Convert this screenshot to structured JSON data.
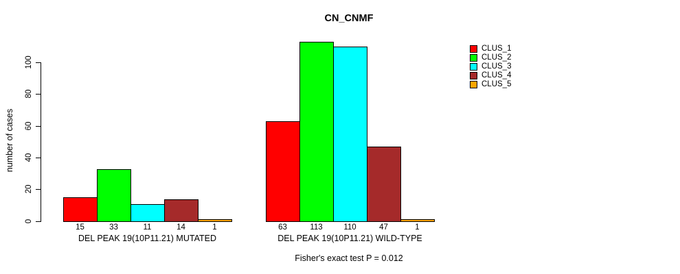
{
  "chart_data": {
    "type": "bar",
    "title": "CN_CNMF",
    "ylabel": "number of cases",
    "xlabel": "",
    "ylim": [
      0,
      113
    ],
    "yticks": [
      0,
      20,
      40,
      60,
      80,
      100
    ],
    "grid": false,
    "bar_border_color": "#000000",
    "legend_position": "top-right-inside",
    "series": [
      {
        "name": "CLUS_1",
        "color": "#FF0000"
      },
      {
        "name": "CLUS_2",
        "color": "#00FF00"
      },
      {
        "name": "CLUS_3",
        "color": "#00FFFF"
      },
      {
        "name": "CLUS_4",
        "color": "#A52A2A"
      },
      {
        "name": "CLUS_5",
        "color": "#FFA500"
      }
    ],
    "groups": [
      {
        "label": "DEL PEAK 19(10P11.21) MUTATED",
        "values": [
          15,
          33,
          11,
          14,
          1
        ]
      },
      {
        "label": "DEL PEAK 19(10P11.21) WILD-TYPE",
        "values": [
          63,
          113,
          110,
          47,
          1
        ]
      }
    ],
    "annotation": "Fisher's exact test P = 0.012"
  }
}
